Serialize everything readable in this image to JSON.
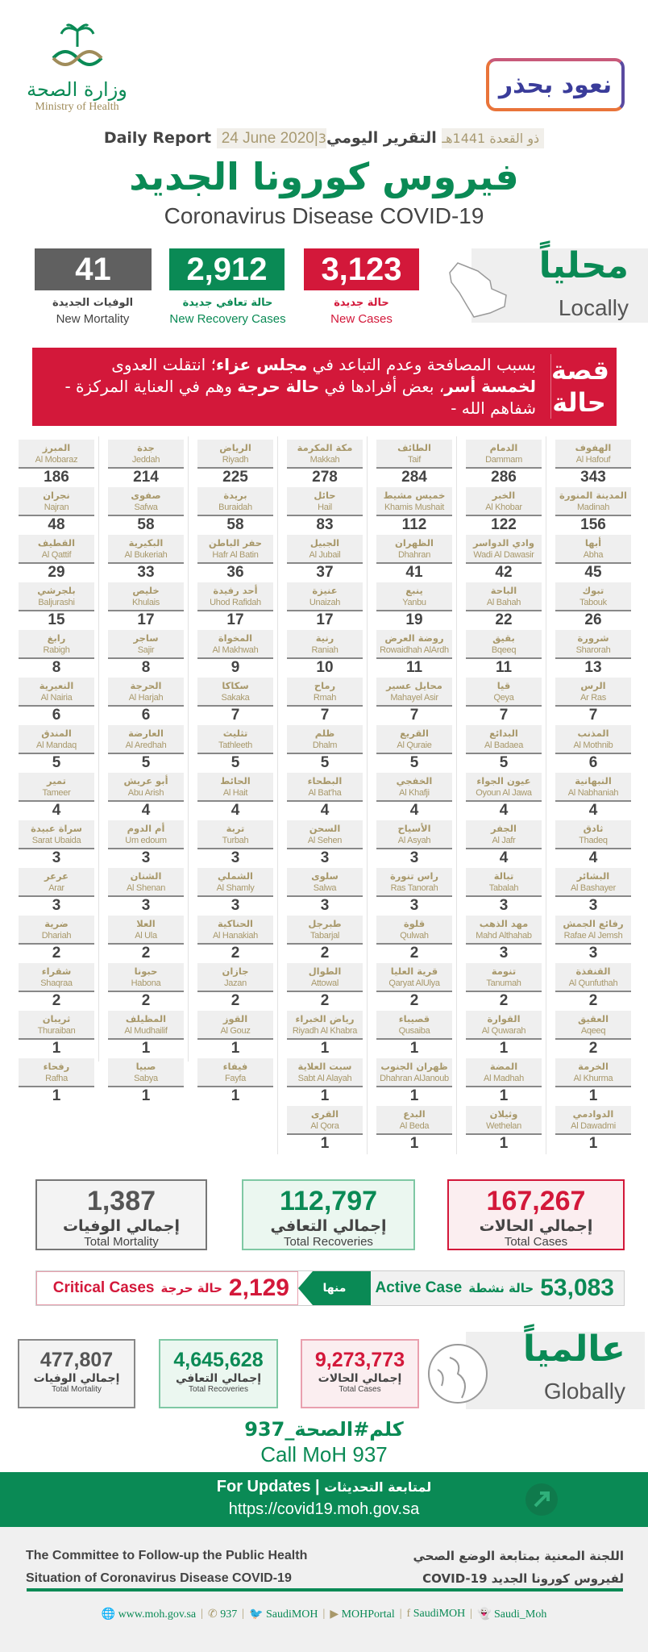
{
  "colors": {
    "green": "#0a8a55",
    "red": "#d3183a",
    "grey": "#606060",
    "gold": "#a8986a"
  },
  "header": {
    "moh_logo": {
      "ar": "وزارة الصحة",
      "en": "Ministry of Health"
    },
    "campaign_logo": "نعود بحذر",
    "report_label_ar": "التقرير اليومي",
    "report_date_hijri": "3ذو القعدة 1441هـ",
    "report_date": "24 June 2020",
    "report_label_en": "Daily Report",
    "title_ar": "فيروس كورونا الجديد",
    "title_en": "Coronavirus Disease COVID-19"
  },
  "local": {
    "heading_ar": "محلياً",
    "heading_en": "Locally",
    "new_cases": {
      "value": "3,123",
      "ar": "حالة جديدة",
      "en": "New Cases"
    },
    "new_recovery": {
      "value": "2,912",
      "ar": "حالة تعافي جديدة",
      "en": "New Recovery Cases"
    },
    "new_mortality": {
      "value": "41",
      "ar": "الوفيات الجديدة",
      "en": "New Mortality"
    }
  },
  "story": {
    "label_line1": "قصة",
    "label_line2": "حالة",
    "segments": [
      {
        "text": "بسبب المصافحة وعدم التباعد في ",
        "bold": false
      },
      {
        "text": "مجلس عزاء",
        "bold": true
      },
      {
        "text": "؛ انتقلت العدوى ",
        "bold": false
      },
      {
        "text": "لخمسة أسر",
        "bold": true
      },
      {
        "text": "، بعض أفرادها في ",
        "bold": false
      },
      {
        "text": "حالة حرجة",
        "bold": true
      },
      {
        "text": " وهم في العناية المركزة - شفاهم الله -",
        "bold": false
      }
    ]
  },
  "cities": [
    [
      [
        "المبرز",
        "Al Mobaraz",
        "186"
      ],
      [
        "جدة",
        "Jeddah",
        "214"
      ],
      [
        "الرياض",
        "Riyadh",
        "225"
      ],
      [
        "مكة المكرمة",
        "Makkah",
        "278"
      ],
      [
        "الطائف",
        "Taif",
        "284"
      ],
      [
        "الدمام",
        "Dammam",
        "286"
      ],
      [
        "الهفوف",
        "Al Hafouf",
        "343"
      ]
    ],
    [
      [
        "نجران",
        "Najran",
        "48"
      ],
      [
        "صفوى",
        "Safwa",
        "58"
      ],
      [
        "بريدة",
        "Buraidah",
        "58"
      ],
      [
        "حائل",
        "Hail",
        "83"
      ],
      [
        "خميس مشيط",
        "Khamis Mushait",
        "112"
      ],
      [
        "الخبر",
        "Al Khobar",
        "122"
      ],
      [
        "المدينة المنورة",
        "Madinah",
        "156"
      ]
    ],
    [
      [
        "القطيف",
        "Al Qattif",
        "29"
      ],
      [
        "البكيرية",
        "Al Bukeriah",
        "33"
      ],
      [
        "حفر الباطن",
        "Hafr Al Batin",
        "36"
      ],
      [
        "الجبيل",
        "Al Jubail",
        "37"
      ],
      [
        "الظهران",
        "Dhahran",
        "41"
      ],
      [
        "وادي الدواسر",
        "Wadi Al Dawasir",
        "42"
      ],
      [
        "أبها",
        "Abha",
        "45"
      ]
    ],
    [
      [
        "بلجرشي",
        "Baljurashi",
        "15"
      ],
      [
        "خليص",
        "Khulais",
        "17"
      ],
      [
        "أحد رفيدة",
        "Uhod Rafidah",
        "17"
      ],
      [
        "عنيزة",
        "Unaizah",
        "17"
      ],
      [
        "ينبع",
        "Yanbu",
        "19"
      ],
      [
        "الباحة",
        "Al Bahah",
        "22"
      ],
      [
        "تبوك",
        "Tabouk",
        "26"
      ]
    ],
    [
      [
        "رابغ",
        "Rabigh",
        "8"
      ],
      [
        "ساجر",
        "Sajir",
        "8"
      ],
      [
        "المخواة",
        "Al Makhwah",
        "9"
      ],
      [
        "رنية",
        "Raniah",
        "10"
      ],
      [
        "روضة العرض",
        "Rowaidhah AlArdh",
        "11"
      ],
      [
        "بقيق",
        "Bqeeq",
        "11"
      ],
      [
        "شرورة",
        "Sharorah",
        "13"
      ]
    ],
    [
      [
        "النعيرية",
        "Al Nairia",
        "6"
      ],
      [
        "الحرجة",
        "Al Harjah",
        "6"
      ],
      [
        "سكاكا",
        "Sakaka",
        "7"
      ],
      [
        "رماح",
        "Rmah",
        "7"
      ],
      [
        "محايل عسير",
        "Mahayel Asir",
        "7"
      ],
      [
        "قيا",
        "Qeya",
        "7"
      ],
      [
        "الرس",
        "Ar Ras",
        "7"
      ]
    ],
    [
      [
        "المندق",
        "Al Mandaq",
        "5"
      ],
      [
        "العارضة",
        "Al Aredhah",
        "5"
      ],
      [
        "تثليث",
        "Tathleeth",
        "5"
      ],
      [
        "ظلم",
        "Dhalm",
        "5"
      ],
      [
        "القريع",
        "Al Quraie",
        "5"
      ],
      [
        "البدائع",
        "Al Badaea",
        "5"
      ],
      [
        "المذنب",
        "Al Mothnib",
        "6"
      ]
    ],
    [
      [
        "تمير",
        "Tameer",
        "4"
      ],
      [
        "أبو عريش",
        "Abu Arish",
        "4"
      ],
      [
        "الحائط",
        "Al Hait",
        "4"
      ],
      [
        "البطحاء",
        "Al Bat'ha",
        "4"
      ],
      [
        "الخفجي",
        "Al Khafji",
        "4"
      ],
      [
        "عيون الجواء",
        "Oyoun Al Jawa",
        "4"
      ],
      [
        "النبهانية",
        "Al Nabhaniah",
        "4"
      ]
    ],
    [
      [
        "سراة عبيدة",
        "Sarat Ubaida",
        "3"
      ],
      [
        "أم الدوم",
        "Um edoum",
        "3"
      ],
      [
        "تربة",
        "Turbah",
        "3"
      ],
      [
        "السحن",
        "Al Sehen",
        "3"
      ],
      [
        "الأسياح",
        "Al Asyah",
        "3"
      ],
      [
        "الجفر",
        "Al Jafr",
        "4"
      ],
      [
        "ثادق",
        "Thadeq",
        "4"
      ]
    ],
    [
      [
        "عرعر",
        "Arar",
        "3"
      ],
      [
        "الشنان",
        "Al Shenan",
        "3"
      ],
      [
        "الشملي",
        "Al Shamly",
        "3"
      ],
      [
        "سلوى",
        "Salwa",
        "3"
      ],
      [
        "راس تنورة",
        "Ras Tanorah",
        "3"
      ],
      [
        "تبالة",
        "Tabalah",
        "3"
      ],
      [
        "البشائر",
        "Al Bashayer",
        "3"
      ]
    ],
    [
      [
        "ضرية",
        "Dhariah",
        "2"
      ],
      [
        "العلا",
        "Al Ula",
        "2"
      ],
      [
        "الحناكية",
        "Al Hanakiah",
        "2"
      ],
      [
        "طبرجل",
        "Tabarjal",
        "2"
      ],
      [
        "قلوة",
        "Qulwah",
        "2"
      ],
      [
        "مهد الذهب",
        "Mahd Althahab",
        "3"
      ],
      [
        "رفائع الجمش",
        "Rafae Al Jemsh",
        "3"
      ]
    ],
    [
      [
        "شقراء",
        "Shaqraa",
        "2"
      ],
      [
        "حبونا",
        "Habona",
        "2"
      ],
      [
        "جازان",
        "Jazan",
        "2"
      ],
      [
        "الطوال",
        "Attowal",
        "2"
      ],
      [
        "قرية العليا",
        "Qaryat AlUlya",
        "2"
      ],
      [
        "تنومة",
        "Tanumah",
        "2"
      ],
      [
        "القنفذة",
        "Al Qunfuthah",
        "2"
      ]
    ],
    [
      [
        "ثريبان",
        "Thuraiban",
        "1"
      ],
      [
        "المظيلف",
        "Al Mudhailif",
        "1"
      ],
      [
        "القوز",
        "Al Gouz",
        "1"
      ],
      [
        "رياض الخبراء",
        "Riyadh Al Khabra",
        "1"
      ],
      [
        "قصيباء",
        "Qusaiba",
        "1"
      ],
      [
        "القوارة",
        "Al Quwarah",
        "1"
      ],
      [
        "العقيق",
        "Aqeeq",
        "2"
      ]
    ],
    [
      [
        "رفحاء",
        "Rafha",
        "1"
      ],
      [
        "صبيا",
        "Sabya",
        "1"
      ],
      [
        "فيفاء",
        "Fayfa",
        "1"
      ],
      [
        "سبت العلاية",
        "Sabt Al Alayah",
        "1"
      ],
      [
        "ظهران الجنوب",
        "Dhahran AlJanoub",
        "1"
      ],
      [
        "المضة",
        "Al Madhah",
        "1"
      ],
      [
        "الخرمة",
        "Al Khurma",
        "1"
      ]
    ],
    [
      null,
      null,
      null,
      [
        "القرى",
        "Al Qora",
        "1"
      ],
      [
        "البدع",
        "Al Beda",
        "1"
      ],
      [
        "وثيلان",
        "Wethelan",
        "1"
      ],
      [
        "الدوادمي",
        "Al Dawadmi",
        "1"
      ]
    ]
  ],
  "totals": {
    "cases": {
      "value": "167,267",
      "ar": "إجمالي الحالات",
      "en": "Total Cases"
    },
    "recoveries": {
      "value": "112,797",
      "ar": "إجمالي التعافي",
      "en": "Total Recoveries"
    },
    "mortality": {
      "value": "1,387",
      "ar": "إجمالي الوفيات",
      "en": "Total Mortality"
    }
  },
  "active": {
    "value": "53,083",
    "ar": "حالة نشطة",
    "en": "Active Case",
    "of_which": "منها",
    "critical_value": "2,129",
    "critical_ar": "حالة حرجة",
    "critical_en": "Critical Cases"
  },
  "global": {
    "heading_ar": "عالمياً",
    "heading_en": "Globally",
    "cases": {
      "value": "9,273,773",
      "ar": "إجمالي الحالات",
      "en": "Total Cases"
    },
    "recoveries": {
      "value": "4,645,628",
      "ar": "إجمالي التعافي",
      "en": "Total Recoveries"
    },
    "mortality": {
      "value": "477,807",
      "ar": "إجمالي الوفيات",
      "en": "Total Mortality"
    }
  },
  "call": {
    "hashtag": "كلم#الصحة_937",
    "en": "Call MoH 937"
  },
  "updates": {
    "en": "For Updates",
    "ar": "لمتابعة التحديثات",
    "url": "https://covid19.moh.gov.sa"
  },
  "footer": {
    "committee_en_1": "The Committee to Follow-up the Public Health",
    "committee_en_2": "Situation of Coronavirus Disease COVID-19",
    "committee_ar_1": "اللجنة المعنية بمتابعة الوضع الصحي",
    "committee_ar_2": "لفيروس كورونا الجديد COVID-19",
    "social": [
      {
        "icon": "globe-icon",
        "glyph": "🌐",
        "label": "www.moh.gov.sa"
      },
      {
        "icon": "phone-icon",
        "glyph": "✆",
        "label": "937"
      },
      {
        "icon": "twitter-icon",
        "glyph": "🐦",
        "label": "SaudiMOH"
      },
      {
        "icon": "youtube-icon",
        "glyph": "▶",
        "label": "MOHPortal"
      },
      {
        "icon": "facebook-icon",
        "glyph": "f",
        "label": "SaudiMOH"
      },
      {
        "icon": "snapchat-icon",
        "glyph": "👻",
        "label": "Saudi_Moh"
      }
    ]
  }
}
